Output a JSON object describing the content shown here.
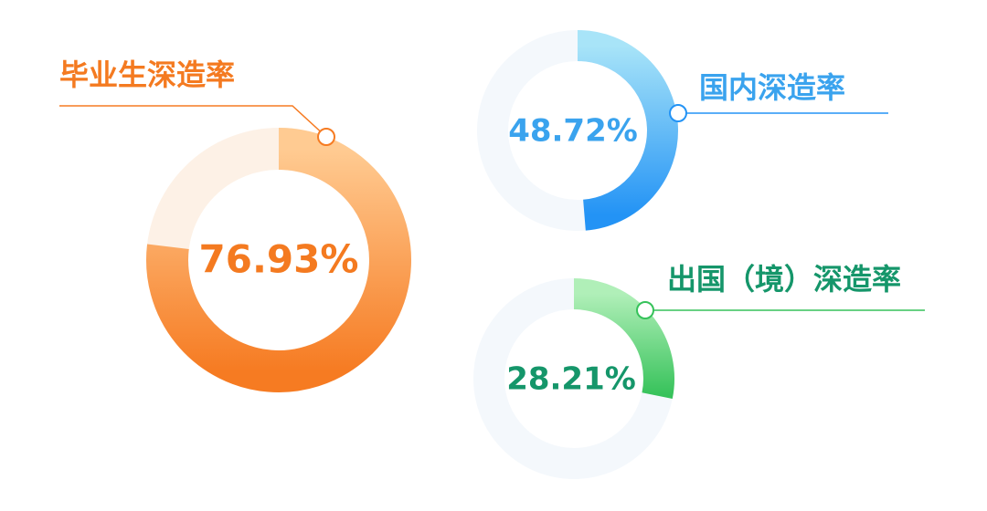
{
  "chart_data": [
    {
      "type": "donut",
      "title": "毕业生深造率",
      "values": [
        76.93
      ],
      "value_labels": [
        "76.93%"
      ],
      "color": [
        "#ffcb92",
        "#f67b22"
      ],
      "track_color": "#fdf1e6",
      "label_color": "#f47a20"
    },
    {
      "type": "donut",
      "title": "国内深造率",
      "values": [
        48.72
      ],
      "value_labels": [
        "48.72%"
      ],
      "color": [
        "#a8e4f8",
        "#2393f5"
      ],
      "track_color": "#f4f8fc",
      "label_color": "#3aa3ee"
    },
    {
      "type": "donut",
      "title": "出国（境）深造率",
      "values": [
        28.21
      ],
      "value_labels": [
        "28.21%"
      ],
      "color": [
        "#b0efb8",
        "#36c25a"
      ],
      "track_color": "#f4f8fc",
      "label_color": "#15966a"
    }
  ]
}
